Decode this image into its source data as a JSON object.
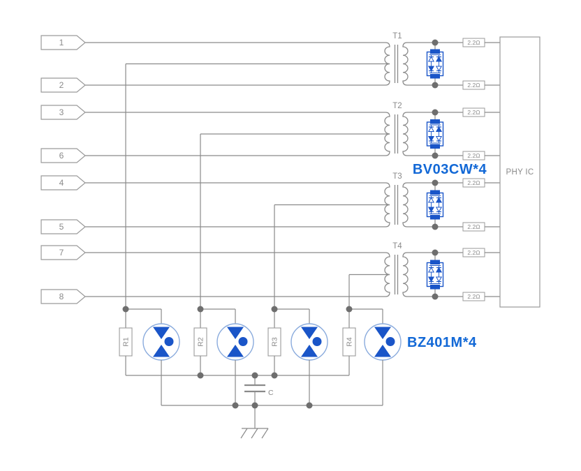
{
  "diagram": {
    "pins": [
      "1",
      "2",
      "3",
      "6",
      "4",
      "5",
      "7",
      "8"
    ],
    "transformers": [
      "T1",
      "T2",
      "T3",
      "T4"
    ],
    "series_resistor_value": "2.2Ω",
    "tvs_part_label": "BV03CW*4",
    "gdt_part_label": "BZ401M*4",
    "bottom_resistors": [
      "R1",
      "R2",
      "R3",
      "R4"
    ],
    "phy_label": "PHY IC",
    "capacitor_label": "C"
  },
  "colors": {
    "wire": "#8a8a8a",
    "box_stroke": "#9a9a9a",
    "text_gray": "#8a8a8a",
    "dot": "#6e6e6e",
    "blue": "#1a55c8",
    "blue_light": "#8aabdd",
    "blue_text": "#1268d6",
    "background": "#ffffff"
  }
}
